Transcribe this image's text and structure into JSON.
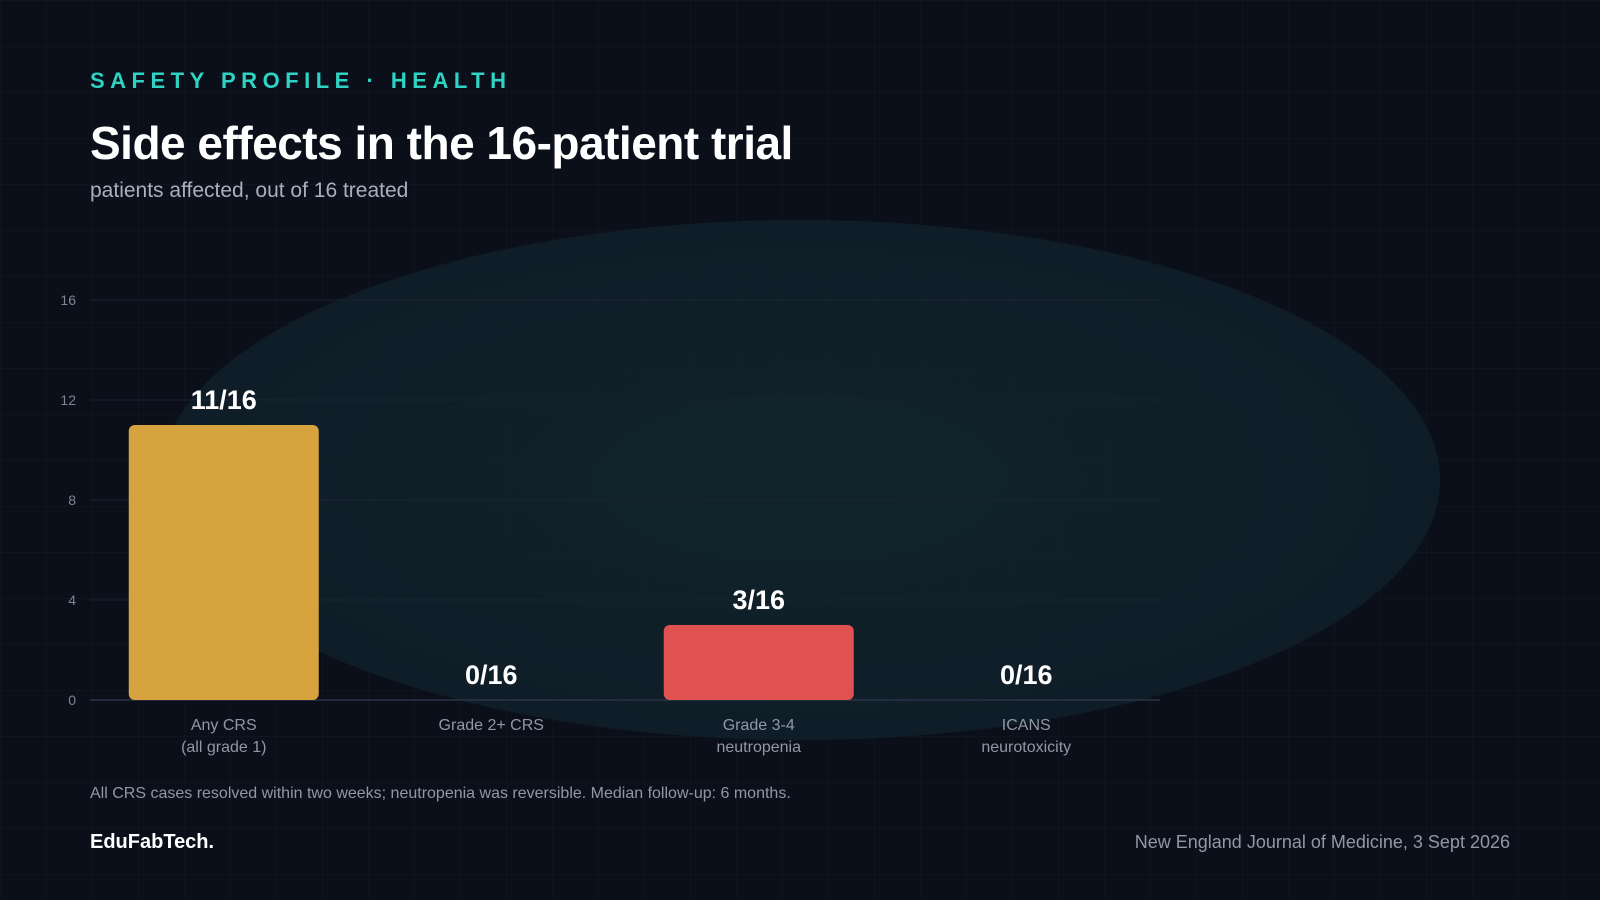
{
  "header": {
    "kicker": "SAFETY PROFILE · HEALTH",
    "title": "Side effects in the 16-patient trial",
    "subtitle": "patients affected, out of 16 treated"
  },
  "chart_data": {
    "type": "bar",
    "categories": [
      [
        "Any CRS",
        "(all grade 1)"
      ],
      [
        "Grade 2+ CRS"
      ],
      [
        "Grade 3-4",
        "neutropenia"
      ],
      [
        "ICANS",
        "neurotoxicity"
      ]
    ],
    "values": [
      11,
      0,
      3,
      0
    ],
    "value_labels": [
      "11/16",
      "0/16",
      "3/16",
      "0/16"
    ],
    "colors": [
      "#d6a33f",
      "#d6a33f",
      "#e05252",
      "#e05252"
    ],
    "ylim": [
      0,
      16
    ],
    "yticks": [
      0,
      4,
      8,
      12,
      16
    ],
    "grid": true,
    "xlabel": "",
    "ylabel": ""
  },
  "footnote": "All CRS cases resolved within two weeks; neutropenia was reversible. Median follow-up: 6 months.",
  "footer": {
    "brand": "EduFabTech.",
    "source": "New England Journal of Medicine, 3 Sept 2026"
  }
}
